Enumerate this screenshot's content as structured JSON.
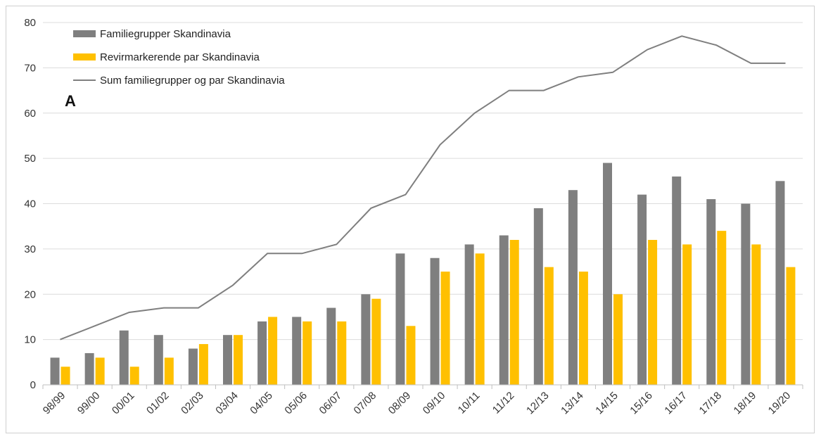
{
  "chart_data": {
    "type": "bar",
    "panel_label": "A",
    "categories": [
      "98/99",
      "99/00",
      "00/01",
      "01/02",
      "02/03",
      "03/04",
      "04/05",
      "05/06",
      "06/07",
      "07/08",
      "08/09",
      "09/10",
      "10/11",
      "11/12",
      "12/13",
      "13/14",
      "14/15",
      "15/16",
      "16/17",
      "17/18",
      "18/19",
      "19/20"
    ],
    "series": [
      {
        "name": "Familiegrupper Skandinavia",
        "kind": "bar",
        "color": "#7f7f7f",
        "values": [
          6,
          7,
          12,
          11,
          8,
          11,
          14,
          15,
          17,
          20,
          29,
          28,
          31,
          33,
          39,
          43,
          49,
          42,
          46,
          41,
          40,
          45
        ]
      },
      {
        "name": "Revirmarkerende par Skandinavia",
        "kind": "bar",
        "color": "#ffc000",
        "values": [
          4,
          6,
          4,
          6,
          9,
          11,
          15,
          14,
          14,
          19,
          13,
          25,
          29,
          32,
          26,
          25,
          20,
          32,
          31,
          34,
          31,
          26
        ]
      },
      {
        "name": "Sum familiegrupper og par Skandinavia",
        "kind": "line",
        "color": "#7f7f7f",
        "values": [
          10,
          13,
          16,
          17,
          17,
          22,
          29,
          29,
          31,
          39,
          42,
          53,
          60,
          65,
          65,
          68,
          69,
          74,
          77,
          75,
          71,
          71
        ]
      }
    ],
    "ylim": [
      0,
      80
    ],
    "yticks": [
      0,
      10,
      20,
      30,
      40,
      50,
      60,
      70,
      80
    ],
    "grid": true,
    "legend_position": "top-left"
  }
}
